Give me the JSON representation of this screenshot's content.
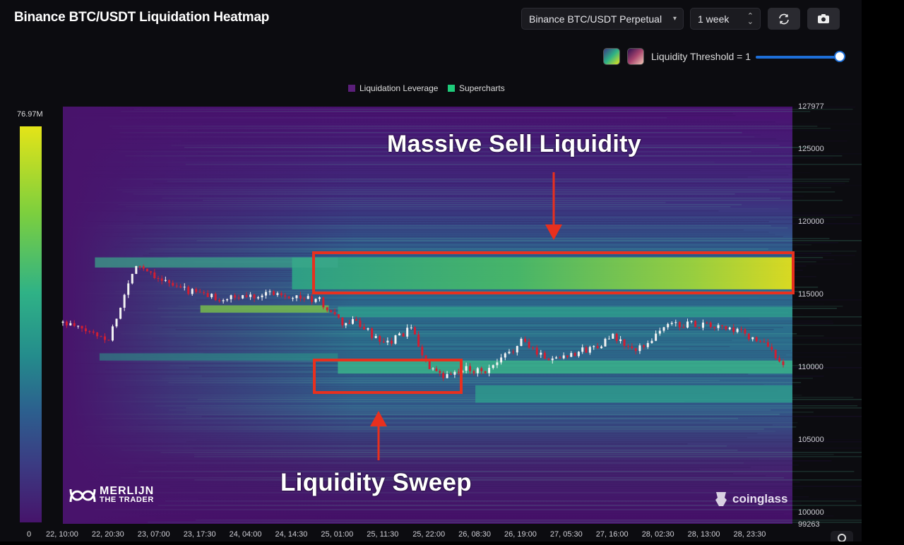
{
  "header": {
    "title": "Binance BTC/USDT Liquidation Heatmap",
    "pair_select": "Binance BTC/USDT Perpetual",
    "range_select": "1 week",
    "refresh_icon": "refresh-icon",
    "camera_icon": "camera-icon"
  },
  "controls": {
    "threshold_label": "Liquidity Threshold = 1",
    "threshold_value": 1,
    "slider_fraction": 1.0,
    "swatch_a_icon": "palette-green-swatch",
    "swatch_b_icon": "palette-pink-swatch"
  },
  "legend": [
    {
      "label": "Liquidation Leverage",
      "color": "#5b1f7a"
    },
    {
      "label": "Supercharts",
      "color": "#1ecb7a"
    }
  ],
  "gauge": {
    "max_label": "76.97M",
    "min_label": "0"
  },
  "annotations": {
    "top": "Massive Sell Liquidity",
    "bottom": "Liquidity Sweep"
  },
  "watermarks": {
    "left_line1": "MERLIJN",
    "left_line2": "THE TRADER",
    "right": "coinglass"
  },
  "chart_data": {
    "type": "heatmap",
    "title": "Binance BTC/USDT Liquidation Heatmap",
    "ylim": [
      99263,
      127977
    ],
    "y_ticks": [
      "127977",
      "125000",
      "120000",
      "115000",
      "110000",
      "105000",
      "100000",
      "99263"
    ],
    "x_ticks": [
      "22, 10:00",
      "22, 20:30",
      "23, 07:00",
      "23, 17:30",
      "24, 04:00",
      "24, 14:30",
      "25, 01:00",
      "25, 11:30",
      "25, 22:00",
      "26, 08:30",
      "26, 19:00",
      "27, 05:30",
      "27, 16:00",
      "28, 02:30",
      "28, 13:00",
      "28, 23:30"
    ],
    "colorscale": [
      "#46146b",
      "#3b3c83",
      "#2c5f8e",
      "#248c8c",
      "#2fb286",
      "#7ccf3e",
      "#e4e418"
    ],
    "color_max": 76970000,
    "color_min": 0,
    "liquidity_bands": [
      {
        "price_low": 115400,
        "price_high": 117600,
        "start": "24, 14:30",
        "intensity": 0.95,
        "label": "Massive Sell Liquidity"
      },
      {
        "price_low": 113500,
        "price_high": 114200,
        "start": "25, 01:00",
        "intensity": 0.55
      },
      {
        "price_low": 109600,
        "price_high": 110500,
        "start": "25, 01:00",
        "intensity": 0.65,
        "label": "Liquidity Sweep"
      },
      {
        "price_low": 107600,
        "price_high": 108800,
        "start": "26, 08:30",
        "intensity": 0.55
      }
    ],
    "price_series": {
      "name": "BTC/USDT",
      "x_index": [
        0,
        1,
        1.6,
        2.4,
        3.5,
        4.6,
        5.6,
        6.1,
        6.4,
        7.0,
        7.6,
        8.0,
        8.3,
        8.8,
        9.3,
        10.0,
        10.6,
        11.5,
        12.0,
        12.5,
        13.2,
        13.8,
        14.3,
        14.8,
        15.3,
        15.8
      ],
      "close": [
        113100,
        112000,
        117200,
        115600,
        114700,
        115200,
        114600,
        113000,
        113200,
        111500,
        112700,
        109900,
        109300,
        109900,
        109800,
        111800,
        110600,
        111300,
        112100,
        111100,
        113000,
        113000,
        112800,
        112400,
        111600,
        110100
      ]
    }
  }
}
